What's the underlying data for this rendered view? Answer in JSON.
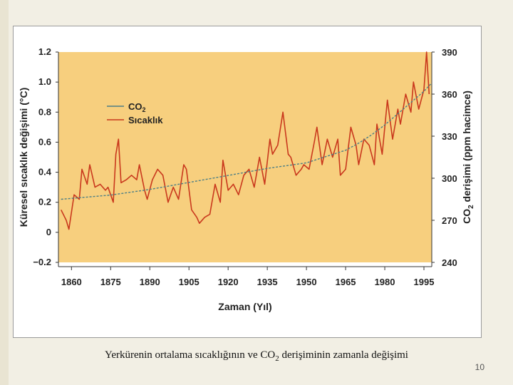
{
  "chart_data": {
    "type": "line",
    "xlabel": "Zaman (Yıl)",
    "ylabel_left": "Küresel sıcaklık değişimi (°C)",
    "ylabel_right_main": "CO",
    "ylabel_right_sub": "2",
    "ylabel_right_rest": " derişimi (ppm hacimce)",
    "x_ticks": [
      "1860",
      "1875",
      "1890",
      "1905",
      "1920",
      "1935",
      "1950",
      "1965",
      "1980",
      "1995"
    ],
    "xlim": [
      1855,
      1998
    ],
    "y_left_ticks": [
      "1.2",
      "1.0",
      "0.8",
      "0.6",
      "0.4",
      "0.2",
      "0",
      "−0.2"
    ],
    "ylim_left": [
      -0.2,
      1.2
    ],
    "y_right_ticks": [
      "390",
      "360",
      "330",
      "300",
      "270",
      "240"
    ],
    "ylim_right": [
      240,
      390
    ],
    "legend_position": "top-left",
    "grid": false,
    "colors": {
      "background": "#f7cf7e",
      "co2": "#4d7f86",
      "temperature": "#c9381d",
      "axis": "#333333"
    },
    "series": [
      {
        "name": "Sıcaklık",
        "key": "temperature",
        "x": [
          1856,
          1858,
          1859,
          1861,
          1863,
          1864,
          1866,
          1867,
          1869,
          1871,
          1873,
          1874,
          1876,
          1877,
          1878,
          1879,
          1881,
          1883,
          1885,
          1886,
          1888,
          1889,
          1891,
          1893,
          1895,
          1897,
          1899,
          1901,
          1903,
          1904,
          1906,
          1908,
          1909,
          1911,
          1913,
          1915,
          1917,
          1918,
          1920,
          1922,
          1924,
          1926,
          1928,
          1930,
          1932,
          1934,
          1936,
          1937,
          1939,
          1941,
          1943,
          1944,
          1946,
          1948,
          1949,
          1951,
          1953,
          1954,
          1956,
          1958,
          1960,
          1962,
          1963,
          1965,
          1967,
          1969,
          1970,
          1972,
          1974,
          1976,
          1977,
          1979,
          1981,
          1983,
          1985,
          1986,
          1988,
          1990,
          1991,
          1993,
          1995,
          1996,
          1997
        ],
        "y": [
          0.15,
          0.08,
          0.02,
          0.25,
          0.22,
          0.42,
          0.32,
          0.45,
          0.3,
          0.32,
          0.28,
          0.3,
          0.2,
          0.52,
          0.62,
          0.33,
          0.35,
          0.38,
          0.35,
          0.45,
          0.28,
          0.22,
          0.35,
          0.42,
          0.38,
          0.2,
          0.3,
          0.22,
          0.45,
          0.42,
          0.15,
          0.1,
          0.06,
          0.1,
          0.12,
          0.32,
          0.2,
          0.48,
          0.28,
          0.32,
          0.25,
          0.38,
          0.42,
          0.3,
          0.5,
          0.32,
          0.62,
          0.52,
          0.58,
          0.8,
          0.52,
          0.5,
          0.38,
          0.42,
          0.45,
          0.42,
          0.6,
          0.7,
          0.45,
          0.62,
          0.5,
          0.62,
          0.38,
          0.42,
          0.7,
          0.58,
          0.45,
          0.62,
          0.58,
          0.45,
          0.72,
          0.52,
          0.88,
          0.62,
          0.82,
          0.72,
          0.92,
          0.8,
          1.0,
          0.82,
          0.95,
          1.2,
          0.92
        ]
      },
      {
        "name": "CO₂",
        "key": "co2",
        "x": [
          1856,
          1875,
          1890,
          1905,
          1920,
          1935,
          1950,
          1960,
          1965,
          1970,
          1975,
          1980,
          1985,
          1990,
          1995,
          1998
        ],
        "y": [
          285,
          288,
          292,
          297,
          302,
          307,
          311,
          317,
          320,
          325,
          331,
          338,
          346,
          354,
          362,
          368
        ]
      }
    ],
    "legend": [
      {
        "label_main": "CO",
        "label_sub": "2",
        "key": "co2"
      },
      {
        "label_main": "Sıcaklık",
        "label_sub": "",
        "key": "temperature"
      }
    ]
  },
  "caption": {
    "pre": "Yerkürenin ortalama sıcaklığının ve CO",
    "sub": "2",
    "post": " derişiminin zamanla değişimi"
  },
  "page_number": "10"
}
